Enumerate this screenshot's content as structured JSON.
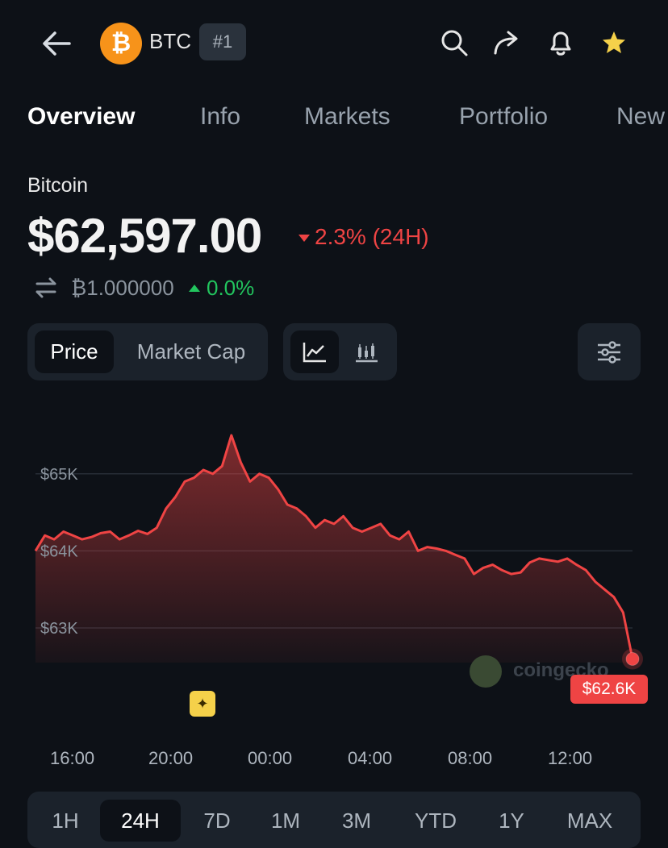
{
  "header": {
    "symbol": "BTC",
    "rank": "#1",
    "logo_glyph": "₿",
    "icons": [
      "back-arrow-icon",
      "search-icon",
      "share-icon",
      "bell-icon",
      "star-icon"
    ]
  },
  "tabs": [
    {
      "label": "Overview",
      "active": true
    },
    {
      "label": "Info",
      "active": false
    },
    {
      "label": "Markets",
      "active": false
    },
    {
      "label": "Portfolio",
      "active": false
    },
    {
      "label": "New",
      "active": false
    }
  ],
  "coin": {
    "name": "Bitcoin",
    "price": "$62,597.00",
    "change": "2.3% (24H)",
    "btc_amount": "₿1.000000",
    "btc_change": "0.0%"
  },
  "chart_toggle": {
    "price": "Price",
    "market_cap": "Market Cap"
  },
  "chart_data": {
    "type": "area",
    "y_ticks": [
      "$65K",
      "$64K",
      "$63K"
    ],
    "x_ticks": [
      "16:00",
      "20:00",
      "00:00",
      "04:00",
      "08:00",
      "12:00"
    ],
    "ylim": [
      62550,
      65500
    ],
    "series": [
      {
        "values": [
          64000,
          64200,
          64150,
          64250,
          64200,
          64150,
          64180,
          64230,
          64250,
          64150,
          64200,
          64260,
          64220,
          64300,
          64550,
          64700,
          64900,
          64950,
          65050,
          65000,
          65100,
          65500,
          65150,
          64900,
          65000,
          64950,
          64800,
          64600,
          64550,
          64450,
          64300,
          64400,
          64350,
          64450,
          64300,
          64250,
          64300,
          64350,
          64200,
          64150,
          64250,
          64000,
          64050,
          64030,
          64000,
          63950,
          63900,
          63700,
          63780,
          63820,
          63750,
          63700,
          63720,
          63850,
          63900,
          63880,
          63860,
          63900,
          63820,
          63750,
          63600,
          63500,
          63400,
          63200,
          62597
        ]
      }
    ],
    "current_label": "$62.6K",
    "color": "#ef4444",
    "watermark": "coingecko"
  },
  "ranges": [
    {
      "label": "1H",
      "active": false
    },
    {
      "label": "24H",
      "active": true
    },
    {
      "label": "7D",
      "active": false
    },
    {
      "label": "1M",
      "active": false
    },
    {
      "label": "3M",
      "active": false
    },
    {
      "label": "YTD",
      "active": false
    },
    {
      "label": "1Y",
      "active": false
    },
    {
      "label": "MAX",
      "active": false
    }
  ]
}
